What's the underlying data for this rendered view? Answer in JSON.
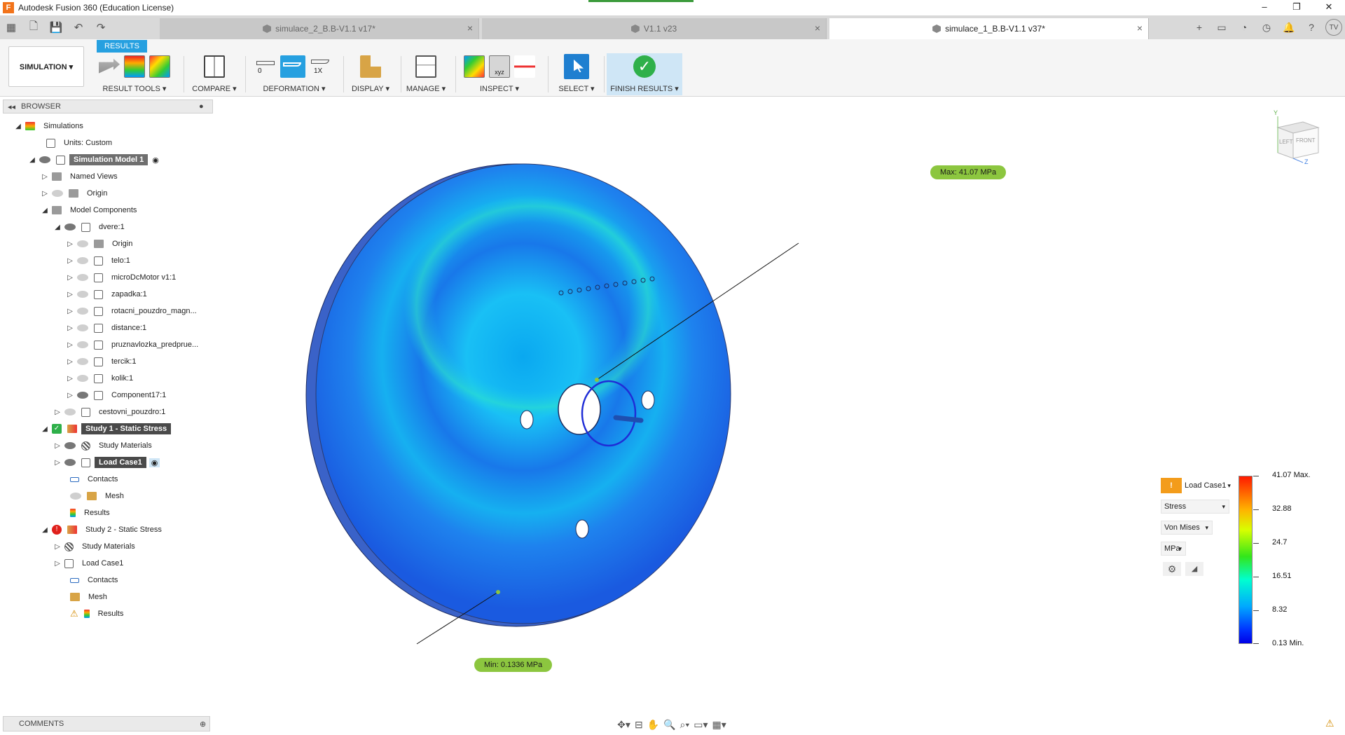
{
  "window": {
    "title": "Autodesk Fusion 360 (Education License)",
    "app_logo": "F",
    "controls": [
      "–",
      "❐",
      "✕"
    ]
  },
  "tabs": [
    {
      "label": "simulace_2_B.B-V1.1 v17*",
      "active": false
    },
    {
      "label": "V1.1 v23",
      "active": false
    },
    {
      "label": "simulace_1_B.B-V1.1 v37*",
      "active": true
    }
  ],
  "user": {
    "initials": "TV"
  },
  "ribbon": {
    "workspace": "SIMULATION ▾",
    "active_tab": "RESULTS",
    "groups": [
      {
        "label": "RESULT TOOLS ▾"
      },
      {
        "label": "COMPARE ▾"
      },
      {
        "label": "DEFORMATION ▾"
      },
      {
        "label": "DISPLAY ▾"
      },
      {
        "label": "MANAGE ▾"
      },
      {
        "label": "INSPECT ▾"
      },
      {
        "label": "SELECT ▾"
      },
      {
        "label": "FINISH RESULTS ▾"
      }
    ],
    "deformation": {
      "zero": "0",
      "scale": "1X"
    }
  },
  "browser": {
    "header": "BROWSER",
    "items": [
      {
        "label": "Simulations"
      },
      {
        "label": "Units: Custom"
      },
      {
        "label": "Simulation Model 1"
      },
      {
        "label": "Named Views"
      },
      {
        "label": "Origin"
      },
      {
        "label": "Model Components"
      },
      {
        "label": "dvere:1"
      },
      {
        "label": "Origin"
      },
      {
        "label": "telo:1"
      },
      {
        "label": "microDcMotor v1:1"
      },
      {
        "label": "zapadka:1"
      },
      {
        "label": "rotacni_pouzdro_magn..."
      },
      {
        "label": "distance:1"
      },
      {
        "label": "pruznavlozka_predprue..."
      },
      {
        "label": "tercik:1"
      },
      {
        "label": "kolik:1"
      },
      {
        "label": "Component17:1"
      },
      {
        "label": "cestovni_pouzdro:1"
      },
      {
        "label": "Study 1 - Static Stress"
      },
      {
        "label": "Study Materials"
      },
      {
        "label": "Load Case1"
      },
      {
        "label": "Contacts"
      },
      {
        "label": "Mesh"
      },
      {
        "label": "Results"
      },
      {
        "label": "Study 2 - Static Stress"
      },
      {
        "label": "Study Materials"
      },
      {
        "label": "Load Case1"
      },
      {
        "label": "Contacts"
      },
      {
        "label": "Mesh"
      },
      {
        "label": "Results"
      }
    ]
  },
  "probes": {
    "max": "Max: 41.07 MPa",
    "min": "Min: 0.1336 MPa"
  },
  "viewcube": {
    "left": "LEFT",
    "front": "FRONT",
    "y": "Y",
    "z": "Z"
  },
  "legend": {
    "load_case": "Load Case1",
    "result_type": "Stress",
    "component": "Von Mises",
    "unit": "MPa",
    "values": [
      "41.07 Max.",
      "32.88",
      "24.7",
      "16.51",
      "8.32",
      "0.13 Min."
    ]
  },
  "comments": {
    "label": "COMMENTS"
  },
  "colors": {
    "accent": "#26a0e0",
    "probe": "#8cc63f",
    "finish": "#2fb04a"
  }
}
